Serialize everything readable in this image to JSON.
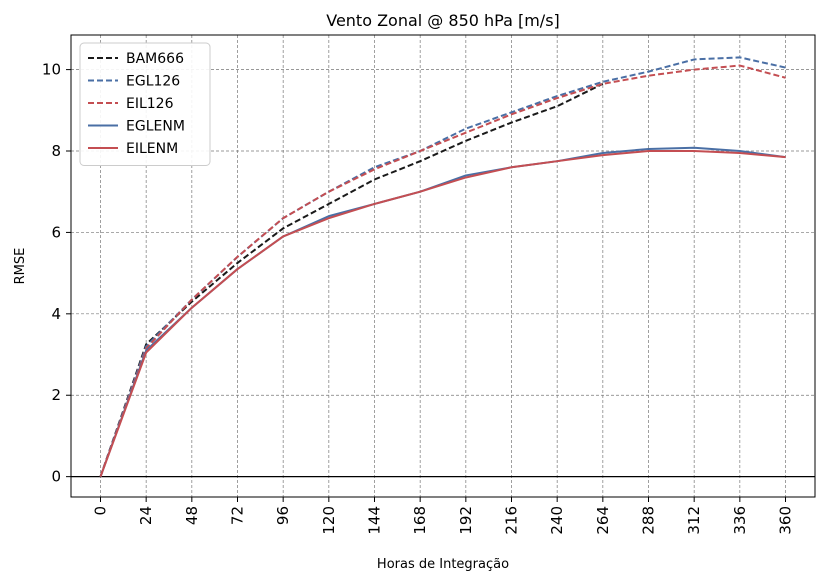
{
  "chart_data": {
    "type": "line",
    "title": "Vento Zonal @ 850 hPa [m/s]",
    "xlabel": "Horas de Integração",
    "ylabel": "RMSE",
    "x": [
      0,
      24,
      48,
      72,
      96,
      120,
      144,
      168,
      192,
      216,
      240,
      264,
      288,
      312,
      336,
      360
    ],
    "xticks": [
      "0",
      "24",
      "48",
      "72",
      "96",
      "120",
      "144",
      "168",
      "192",
      "216",
      "240",
      "264",
      "288",
      "312",
      "336",
      "360"
    ],
    "yticks": [
      "0",
      "2",
      "4",
      "6",
      "8",
      "10"
    ],
    "ylim": [
      -0.5,
      10.85
    ],
    "grid": true,
    "legend_position": "top-left",
    "series": [
      {
        "name": "BAM666",
        "style": "dashed",
        "color": "#1a1a1a",
        "values": [
          0,
          3.25,
          4.3,
          5.25,
          6.1,
          6.7,
          7.3,
          7.75,
          8.25,
          8.7,
          9.1,
          9.65,
          null,
          null,
          null,
          null
        ]
      },
      {
        "name": "EGL126",
        "style": "dashed",
        "color": "#4a6fa5",
        "values": [
          0,
          3.2,
          4.35,
          5.4,
          6.35,
          7.0,
          7.6,
          8.0,
          8.55,
          8.95,
          9.35,
          9.7,
          9.95,
          10.25,
          10.3,
          10.05
        ]
      },
      {
        "name": "EIL126",
        "style": "dashed",
        "color": "#c44e52",
        "values": [
          0,
          3.15,
          4.35,
          5.4,
          6.35,
          7.0,
          7.55,
          8.0,
          8.45,
          8.9,
          9.3,
          9.65,
          9.85,
          10.0,
          10.1,
          9.8
        ]
      },
      {
        "name": "EGLENM",
        "style": "solid",
        "color": "#4a6fa5",
        "values": [
          0,
          3.1,
          4.15,
          5.1,
          5.9,
          6.4,
          6.7,
          7.0,
          7.4,
          7.6,
          7.75,
          7.95,
          8.05,
          8.08,
          8.0,
          7.85
        ]
      },
      {
        "name": "EILENM",
        "style": "solid",
        "color": "#c44e52",
        "values": [
          0,
          3.05,
          4.15,
          5.1,
          5.9,
          6.35,
          6.7,
          7.0,
          7.35,
          7.6,
          7.75,
          7.9,
          8.0,
          8.0,
          7.95,
          7.85
        ]
      }
    ]
  }
}
